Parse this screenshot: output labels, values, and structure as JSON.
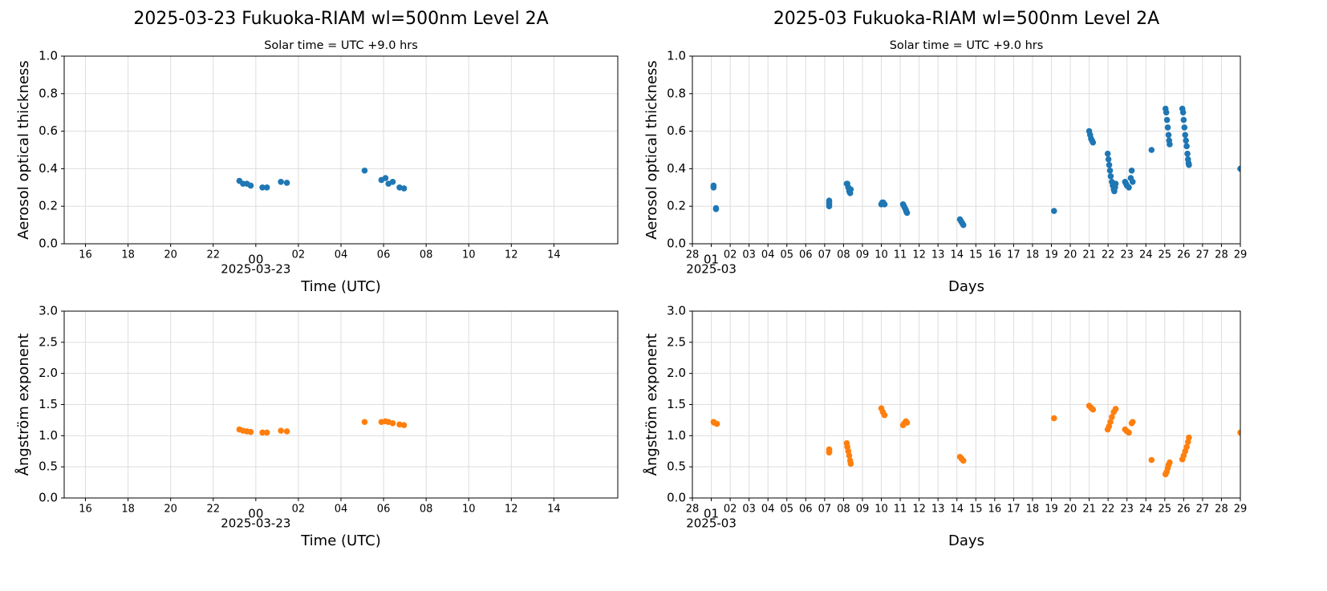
{
  "chart_data": [
    {
      "type": "scatter",
      "title": "2025-03-23  Fukuoka-RIAM  wl=500nm  Level 2A",
      "subtitle": "Solar time = UTC +9.0 hrs",
      "xlabel": "Time (UTC)",
      "ylabel": "Aerosol optical thickness",
      "x_date_label": "2025-03-23",
      "color": "#1f77b4",
      "grid": true,
      "xlim": [
        -9,
        17
      ],
      "ylim": [
        0,
        1
      ],
      "xticks": [
        {
          "value": -8,
          "label": "16"
        },
        {
          "value": -6,
          "label": "18"
        },
        {
          "value": -4,
          "label": "20"
        },
        {
          "value": -2,
          "label": "22"
        },
        {
          "value": 0,
          "label": "00"
        },
        {
          "value": 2,
          "label": "02"
        },
        {
          "value": 4,
          "label": "04"
        },
        {
          "value": 6,
          "label": "06"
        },
        {
          "value": 8,
          "label": "08"
        },
        10,
        12,
        14
      ],
      "yticks": [
        {
          "value": 0,
          "label": "0.0"
        },
        {
          "value": 0.2,
          "label": "0.2"
        },
        {
          "value": 0.4,
          "label": "0.4"
        },
        {
          "value": 0.6,
          "label": "0.6"
        },
        {
          "value": 0.8,
          "label": "0.8"
        },
        {
          "value": 1,
          "label": "1.0"
        }
      ],
      "x": [
        -0.77,
        -0.6,
        -0.42,
        -0.24,
        0.31,
        0.52,
        1.18,
        1.46,
        5.11,
        5.9,
        6.09,
        6.23,
        6.43,
        6.75,
        6.96
      ],
      "values": [
        0.335,
        0.32,
        0.32,
        0.31,
        0.3,
        0.3,
        0.33,
        0.325,
        0.39,
        0.34,
        0.35,
        0.32,
        0.33,
        0.3,
        0.295
      ]
    },
    {
      "type": "scatter",
      "title": "2025-03  Fukuoka-RIAM  wl=500nm  Level 2A",
      "subtitle": "Solar time = UTC +9.0 hrs",
      "xlabel": "Days",
      "ylabel": "Aerosol optical thickness",
      "x_date_label": "2025-03",
      "color": "#1f77b4",
      "grid": true,
      "xlim": [
        0,
        29
      ],
      "ylim": [
        0,
        1
      ],
      "xticks": [
        {
          "value": 0,
          "label": "28"
        },
        {
          "value": 1,
          "label": "01"
        },
        {
          "value": 2,
          "label": "02"
        },
        {
          "value": 3,
          "label": "03"
        },
        {
          "value": 4,
          "label": "04"
        },
        {
          "value": 5,
          "label": "05"
        },
        {
          "value": 6,
          "label": "06"
        },
        {
          "value": 7,
          "label": "07"
        },
        {
          "value": 8,
          "label": "08"
        },
        {
          "value": 9,
          "label": "09"
        },
        10,
        11,
        12,
        13,
        14,
        15,
        16,
        17,
        18,
        19,
        20,
        21,
        22,
        23,
        24,
        25,
        26,
        27,
        28,
        29
      ],
      "yticks": [
        {
          "value": 0,
          "label": "0.0"
        },
        {
          "value": 0.2,
          "label": "0.2"
        },
        {
          "value": 0.4,
          "label": "0.4"
        },
        {
          "value": 0.6,
          "label": "0.6"
        },
        {
          "value": 0.8,
          "label": "0.8"
        },
        {
          "value": 1,
          "label": "1.0"
        }
      ],
      "x": [
        1.12,
        1.12,
        1.25,
        1.25,
        7.24,
        7.24,
        7.24,
        7.24,
        8.17,
        8.2,
        8.25,
        8.3,
        8.35,
        8.38,
        10.0,
        10.05,
        10.1,
        10.17,
        11.15,
        11.2,
        11.25,
        11.3,
        11.33,
        11.36,
        14.16,
        14.22,
        14.28,
        14.34,
        19.14,
        21.0,
        21.05,
        21.1,
        21.15,
        21.2,
        21.98,
        22.02,
        22.06,
        22.1,
        22.14,
        22.2,
        22.25,
        22.3,
        22.33,
        22.37,
        22.4,
        22.9,
        22.95,
        23.0,
        23.1,
        23.2,
        23.25,
        23.3,
        24.3,
        25.04,
        25.08,
        25.12,
        25.16,
        25.2,
        25.23,
        25.26,
        25.93,
        25.97,
        26.0,
        26.04,
        26.08,
        26.12,
        26.16,
        26.2,
        26.23,
        26.26,
        26.28,
        29.0
      ],
      "values": [
        0.31,
        0.3,
        0.19,
        0.185,
        0.23,
        0.22,
        0.21,
        0.2,
        0.32,
        0.32,
        0.3,
        0.28,
        0.27,
        0.29,
        0.21,
        0.22,
        0.22,
        0.21,
        0.21,
        0.2,
        0.19,
        0.18,
        0.17,
        0.165,
        0.13,
        0.12,
        0.11,
        0.1,
        0.175,
        0.6,
        0.58,
        0.56,
        0.55,
        0.54,
        0.48,
        0.45,
        0.42,
        0.39,
        0.36,
        0.33,
        0.31,
        0.29,
        0.28,
        0.3,
        0.32,
        0.33,
        0.32,
        0.31,
        0.3,
        0.35,
        0.39,
        0.33,
        0.5,
        0.72,
        0.7,
        0.66,
        0.62,
        0.58,
        0.55,
        0.53,
        0.72,
        0.7,
        0.66,
        0.62,
        0.58,
        0.55,
        0.52,
        0.48,
        0.45,
        0.43,
        0.42,
        0.4
      ]
    },
    {
      "type": "scatter",
      "xlabel": "Time (UTC)",
      "ylabel": "Ångström exponent",
      "x_date_label": "2025-03-23",
      "color": "#ff7f0e",
      "grid": true,
      "xlim": [
        -9,
        17
      ],
      "ylim": [
        0,
        3
      ],
      "xticks": [
        {
          "value": -8,
          "label": "16"
        },
        {
          "value": -6,
          "label": "18"
        },
        {
          "value": -4,
          "label": "20"
        },
        {
          "value": -2,
          "label": "22"
        },
        {
          "value": 0,
          "label": "00"
        },
        {
          "value": 2,
          "label": "02"
        },
        {
          "value": 4,
          "label": "04"
        },
        {
          "value": 6,
          "label": "06"
        },
        {
          "value": 8,
          "label": "08"
        },
        10,
        12,
        14
      ],
      "yticks": [
        {
          "value": 0,
          "label": "0.0"
        },
        0.5,
        {
          "value": 1,
          "label": "1.0"
        },
        1.5,
        {
          "value": 2,
          "label": "2.0"
        },
        2.5,
        {
          "value": 3,
          "label": "3.0"
        }
      ],
      "x": [
        -0.77,
        -0.6,
        -0.42,
        -0.24,
        0.31,
        0.52,
        1.18,
        1.46,
        5.11,
        5.9,
        6.09,
        6.23,
        6.43,
        6.75,
        6.96
      ],
      "values": [
        1.1,
        1.08,
        1.07,
        1.06,
        1.05,
        1.05,
        1.08,
        1.07,
        1.22,
        1.22,
        1.23,
        1.22,
        1.2,
        1.18,
        1.17
      ]
    },
    {
      "type": "scatter",
      "xlabel": "Days",
      "ylabel": "Ångström exponent",
      "x_date_label": "2025-03",
      "color": "#ff7f0e",
      "grid": true,
      "xlim": [
        0,
        29
      ],
      "ylim": [
        0,
        3
      ],
      "xticks": [
        {
          "value": 0,
          "label": "28"
        },
        {
          "value": 1,
          "label": "01"
        },
        {
          "value": 2,
          "label": "02"
        },
        {
          "value": 3,
          "label": "03"
        },
        {
          "value": 4,
          "label": "04"
        },
        {
          "value": 5,
          "label": "05"
        },
        {
          "value": 6,
          "label": "06"
        },
        {
          "value": 7,
          "label": "07"
        },
        {
          "value": 8,
          "label": "08"
        },
        {
          "value": 9,
          "label": "09"
        },
        10,
        11,
        12,
        13,
        14,
        15,
        16,
        17,
        18,
        19,
        20,
        21,
        22,
        23,
        24,
        25,
        26,
        27,
        28,
        29
      ],
      "yticks": [
        {
          "value": 0,
          "label": "0.0"
        },
        0.5,
        {
          "value": 1,
          "label": "1.0"
        },
        1.5,
        {
          "value": 2,
          "label": "2.0"
        },
        2.5,
        {
          "value": 3,
          "label": "3.0"
        }
      ],
      "x": [
        1.12,
        1.15,
        1.3,
        7.24,
        7.24,
        7.24,
        8.17,
        8.2,
        8.25,
        8.3,
        8.35,
        8.38,
        10.0,
        10.08,
        10.17,
        11.15,
        11.22,
        11.3,
        11.36,
        14.16,
        14.25,
        14.34,
        19.14,
        21.0,
        21.1,
        21.2,
        21.98,
        22.05,
        22.12,
        22.2,
        22.3,
        22.4,
        22.9,
        23.0,
        23.1,
        23.25,
        23.3,
        24.3,
        25.04,
        25.1,
        25.16,
        25.2,
        25.26,
        25.93,
        26.0,
        26.08,
        26.16,
        26.23,
        26.28,
        29.0
      ],
      "values": [
        1.22,
        1.21,
        1.19,
        0.78,
        0.75,
        0.73,
        0.88,
        0.82,
        0.75,
        0.68,
        0.6,
        0.55,
        1.44,
        1.38,
        1.33,
        1.17,
        1.2,
        1.23,
        1.21,
        0.66,
        0.63,
        0.6,
        1.28,
        1.48,
        1.45,
        1.42,
        1.1,
        1.15,
        1.22,
        1.3,
        1.38,
        1.43,
        1.1,
        1.07,
        1.05,
        1.2,
        1.22,
        0.61,
        0.38,
        0.42,
        0.48,
        0.53,
        0.57,
        0.62,
        0.68,
        0.75,
        0.82,
        0.9,
        0.97,
        1.05
      ]
    }
  ]
}
